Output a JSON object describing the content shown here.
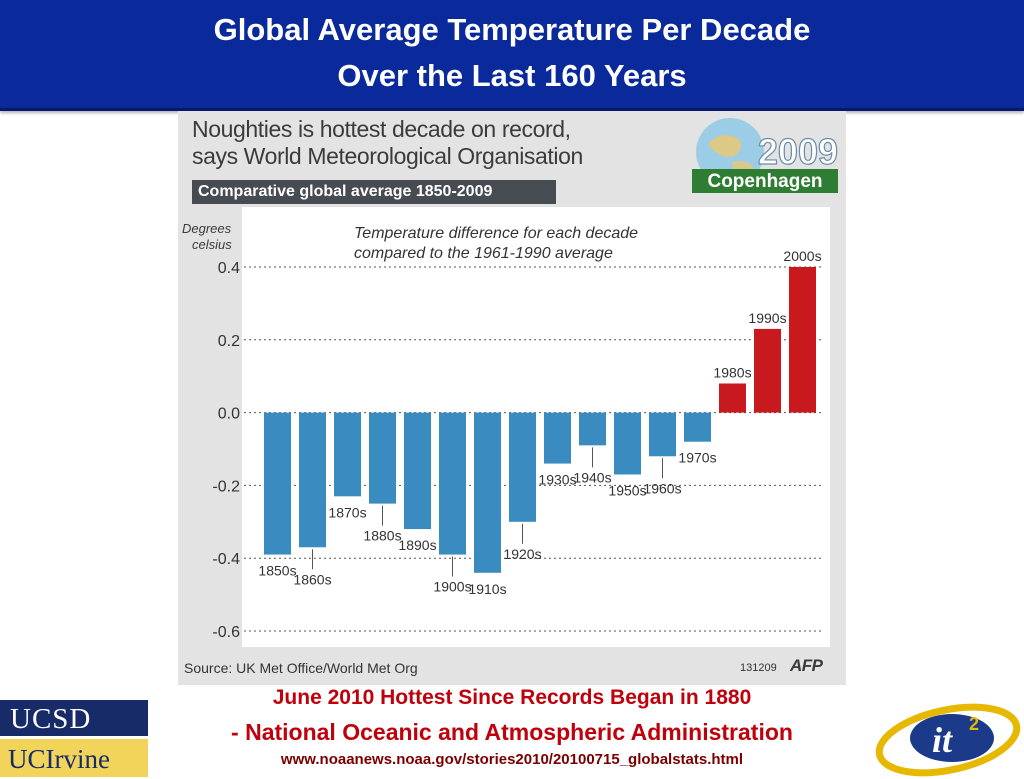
{
  "header": {
    "title_line1": "Global Average Temperature Per Decade",
    "title_line2": "Over the Last 160 Years",
    "background": "#0a2a9c"
  },
  "graphic": {
    "headline_line1": "Noughties is hottest decade on record,",
    "headline_line2": "says World Meteorological Organisation",
    "subtitle": "Comparative global average 1850-2009",
    "logo_year": "2009",
    "logo_city": "Copenhagen",
    "source": "Source: UK Met Office/World Met Org",
    "date_code": "131209",
    "agency": "AFP"
  },
  "chart_data": {
    "type": "bar",
    "annotation_line1": "Temperature difference for each decade",
    "annotation_line2": "compared to the 1961-1990 average",
    "ylabel_line1": "Degrees",
    "ylabel_line2": "celsius",
    "ylim": [
      -0.6,
      0.4
    ],
    "yticks": [
      0.4,
      0.2,
      0.0,
      -0.2,
      -0.4,
      -0.6
    ],
    "ytick_labels": [
      "0.4",
      "0.2",
      "0.0",
      "-0.2",
      "-0.4",
      "-0.6"
    ],
    "grid": true,
    "categories": [
      "1850s",
      "1860s",
      "1870s",
      "1880s",
      "1890s",
      "1900s",
      "1910s",
      "1920s",
      "1930s",
      "1940s",
      "1950s",
      "1960s",
      "1970s",
      "1980s",
      "1990s",
      "2000s"
    ],
    "values": [
      -0.39,
      -0.37,
      -0.23,
      -0.25,
      -0.32,
      -0.39,
      -0.44,
      -0.3,
      -0.14,
      -0.09,
      -0.17,
      -0.12,
      -0.08,
      0.08,
      0.23,
      0.4
    ],
    "colors": {
      "negative": "#3a8bbf",
      "positive": "#c8191e"
    }
  },
  "caption": {
    "line1": "June 2010 Hottest Since Records Began in 1880",
    "line2": "- National Oceanic and Atmospheric Administration",
    "line3": "www.noaanews.noaa.gov/stories2010/20100715_globalstats.html"
  },
  "logos": {
    "ucsd": "UCSD",
    "uci": "UCIrvine",
    "it2": "it",
    "it2_sup": "2"
  }
}
